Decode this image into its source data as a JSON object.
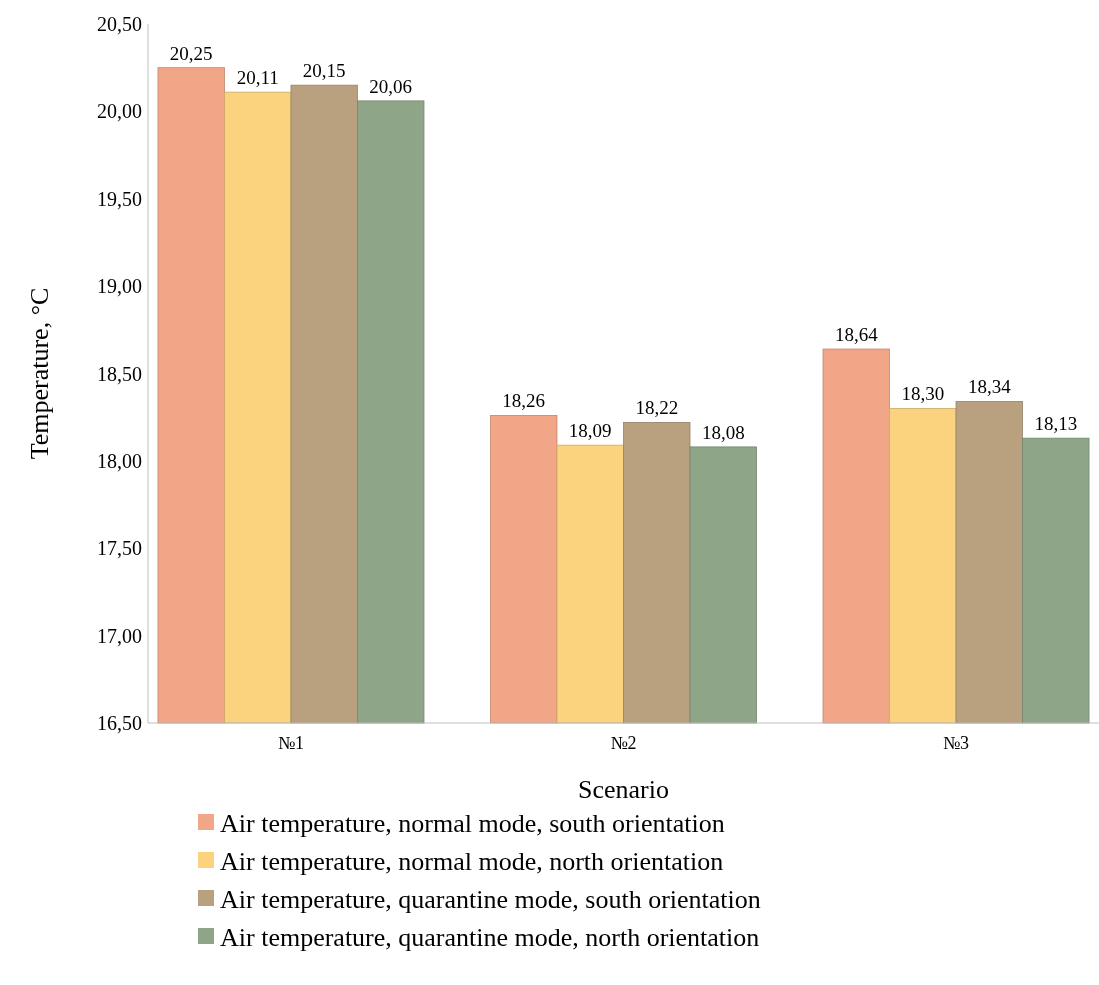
{
  "chart_data": {
    "type": "bar",
    "xlabel": "Scenario",
    "ylabel": "Temperature, °C",
    "categories": [
      "№1",
      "№2",
      "№3"
    ],
    "series": [
      {
        "name": "Air temperature, normal mode, south orientation",
        "color": "#f2a688",
        "values": [
          20.25,
          18.26,
          18.64
        ],
        "value_labels": [
          "20,25",
          "18,26",
          "18,64"
        ]
      },
      {
        "name": "Air temperature, normal mode, north orientation",
        "color": "#fbd27e",
        "values": [
          20.11,
          18.09,
          18.3
        ],
        "value_labels": [
          "20,11",
          "18,09",
          "18,30"
        ]
      },
      {
        "name": "Air temperature, quarantine mode, south orientation",
        "color": "#b9a07f",
        "values": [
          20.15,
          18.22,
          18.34
        ],
        "value_labels": [
          "20,15",
          "18,22",
          "18,34"
        ]
      },
      {
        "name": "Air temperature, quarantine mode, north orientation",
        "color": "#8fa588",
        "values": [
          20.06,
          18.08,
          18.13
        ],
        "value_labels": [
          "20,06",
          "18,08",
          "18,13"
        ]
      }
    ],
    "ylim": [
      16.5,
      20.5
    ],
    "yticks": [
      {
        "value": 16.5,
        "label": "16,50"
      },
      {
        "value": 17,
        "label": "17,00"
      },
      {
        "value": 17.5,
        "label": "17,50"
      },
      {
        "value": 18,
        "label": "18,00"
      },
      {
        "value": 18.5,
        "label": "18,50"
      },
      {
        "value": 19,
        "label": "19,00"
      },
      {
        "value": 19.5,
        "label": "19,50"
      },
      {
        "value": 20,
        "label": "20,00"
      },
      {
        "value": 20.5,
        "label": "20,50"
      }
    ],
    "legend": "bottom"
  }
}
